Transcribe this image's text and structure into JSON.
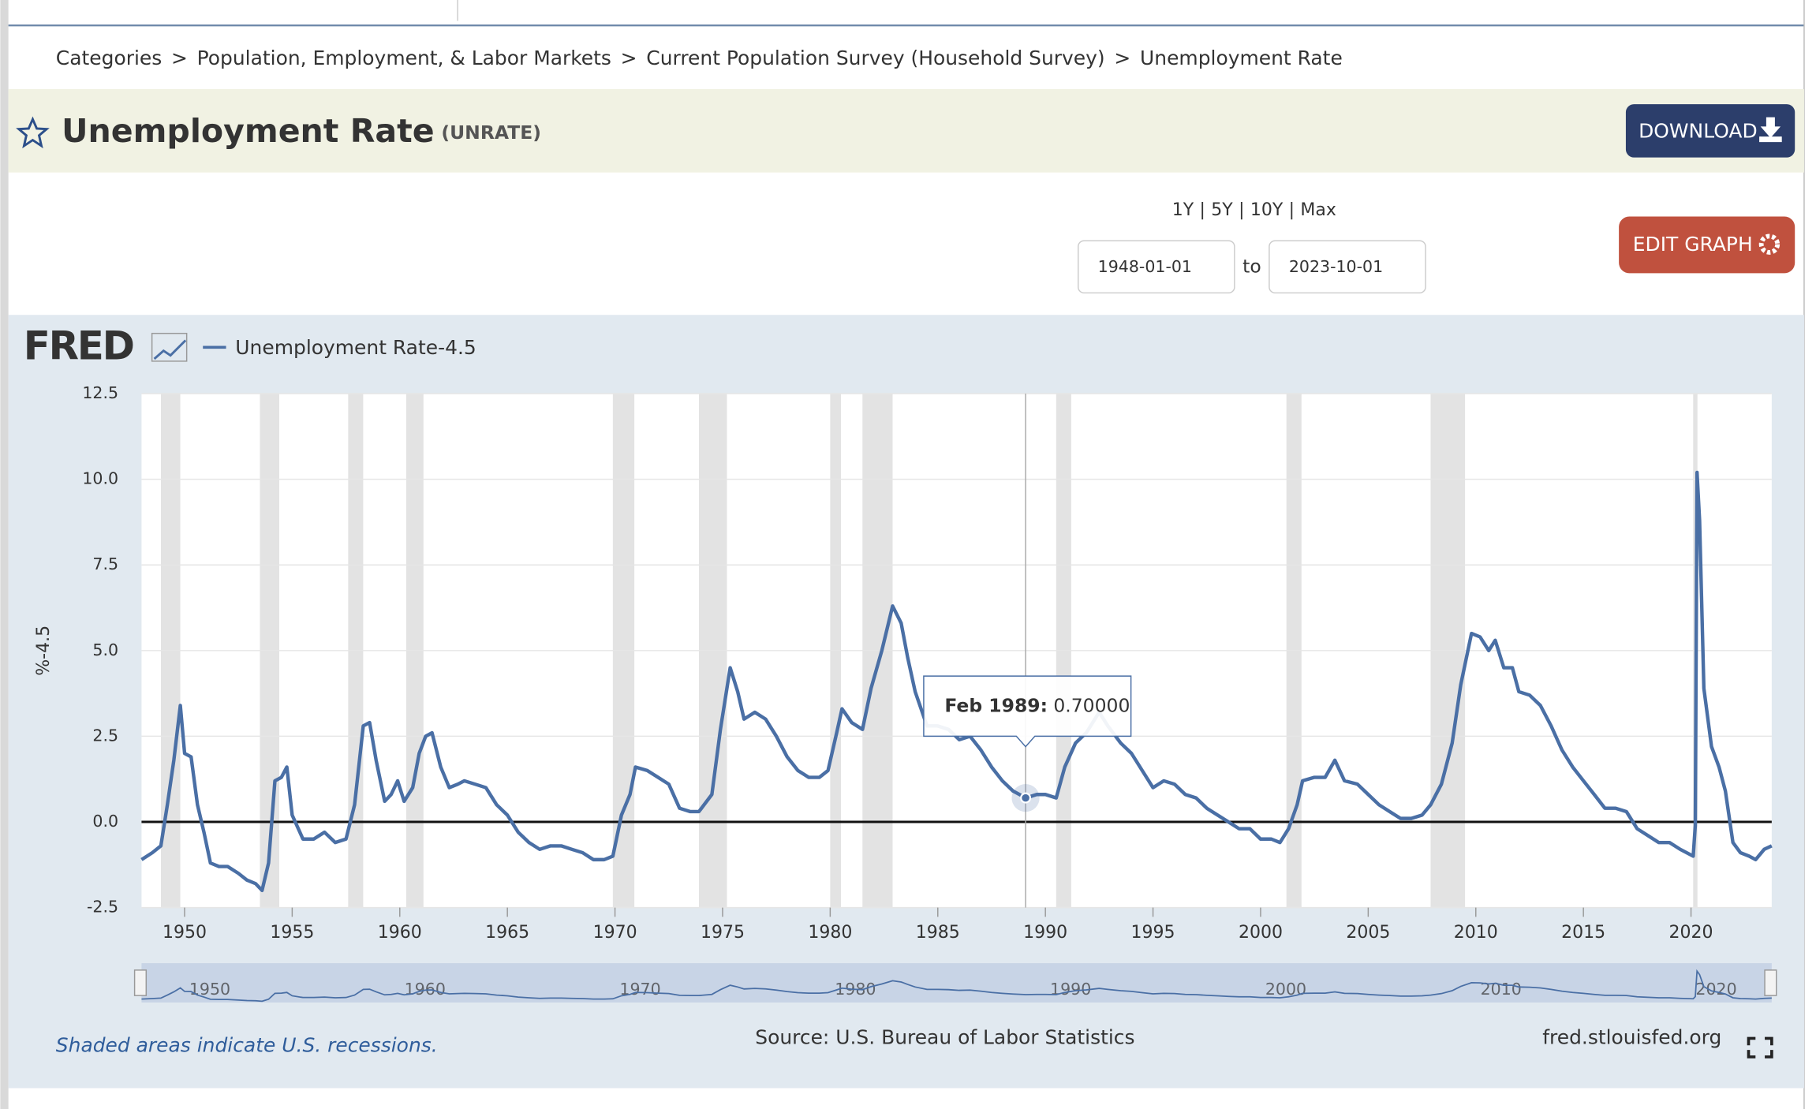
{
  "breadcrumb": {
    "separator": ">",
    "items": [
      "Categories",
      "Population, Employment, & Labor Markets",
      "Current Population Survey (Household Survey)",
      "Unemployment Rate"
    ]
  },
  "header": {
    "title": "Unemployment Rate",
    "series_id": "(UNRATE)",
    "download": "DOWNLOAD"
  },
  "controls": {
    "separator": "|",
    "ranges": [
      "1Y",
      "5Y",
      "10Y",
      "Max"
    ],
    "start": "1948-01-01",
    "to": "to",
    "end": "2023-10-01",
    "edit": "EDIT GRAPH"
  },
  "chart_data": {
    "type": "line",
    "brand": "FRED",
    "ylabel": "%-4.5",
    "x": [
      1948.0,
      1948.5,
      1948.9,
      1949.2,
      1949.5,
      1949.8,
      1950.0,
      1950.3,
      1950.6,
      1950.9,
      1951.2,
      1951.6,
      1952.0,
      1952.5,
      1952.9,
      1953.3,
      1953.6,
      1953.9,
      1954.2,
      1954.5,
      1954.75,
      1955.0,
      1955.5,
      1956.0,
      1956.5,
      1957.0,
      1957.5,
      1957.9,
      1958.3,
      1958.6,
      1958.9,
      1959.3,
      1959.6,
      1959.9,
      1960.2,
      1960.6,
      1960.9,
      1961.2,
      1961.5,
      1961.9,
      1962.3,
      1962.7,
      1963.0,
      1963.5,
      1964.0,
      1964.5,
      1965.0,
      1965.5,
      1966.0,
      1966.5,
      1967.0,
      1967.5,
      1968.0,
      1968.5,
      1969.0,
      1969.5,
      1969.9,
      1970.3,
      1970.7,
      1970.95,
      1971.5,
      1972.0,
      1972.5,
      1973.0,
      1973.5,
      1973.9,
      1974.5,
      1974.9,
      1975.35,
      1975.7,
      1976.0,
      1976.5,
      1977.0,
      1977.5,
      1978.0,
      1978.5,
      1979.0,
      1979.5,
      1979.9,
      1980.3,
      1980.55,
      1981.0,
      1981.5,
      1981.9,
      1982.4,
      1982.9,
      1983.3,
      1983.6,
      1983.95,
      1984.5,
      1985.0,
      1985.5,
      1986.0,
      1986.5,
      1987.0,
      1987.5,
      1988.0,
      1988.5,
      1989.1,
      1989.6,
      1990.0,
      1990.5,
      1990.9,
      1991.4,
      1991.9,
      1992.5,
      1992.9,
      1993.5,
      1994.0,
      1994.5,
      1995.0,
      1995.5,
      1996.0,
      1996.5,
      1997.0,
      1997.5,
      1998.0,
      1998.5,
      1999.0,
      1999.5,
      2000.0,
      2000.5,
      2000.9,
      2001.3,
      2001.7,
      2001.95,
      2002.5,
      2003.0,
      2003.45,
      2003.9,
      2004.5,
      2005.0,
      2005.5,
      2006.0,
      2006.5,
      2007.0,
      2007.5,
      2007.9,
      2008.4,
      2008.9,
      2009.3,
      2009.8,
      2010.2,
      2010.6,
      2010.9,
      2011.3,
      2011.7,
      2012.0,
      2012.5,
      2013.0,
      2013.5,
      2014.0,
      2014.5,
      2015.0,
      2015.5,
      2016.0,
      2016.5,
      2017.0,
      2017.5,
      2018.0,
      2018.5,
      2019.0,
      2019.5,
      2020.1,
      2020.2,
      2020.28,
      2020.4,
      2020.6,
      2020.95,
      2021.3,
      2021.6,
      2021.95,
      2022.3,
      2022.7,
      2023.0,
      2023.4,
      2023.75
    ],
    "series": [
      {
        "name": "Unemployment Rate-4.5",
        "color": "#4a6fa5",
        "values": [
          -1.1,
          -0.9,
          -0.7,
          0.5,
          1.8,
          3.4,
          2.0,
          1.9,
          0.5,
          -0.3,
          -1.2,
          -1.3,
          -1.3,
          -1.5,
          -1.7,
          -1.8,
          -2.0,
          -1.2,
          1.2,
          1.3,
          1.6,
          0.2,
          -0.5,
          -0.5,
          -0.3,
          -0.6,
          -0.5,
          0.5,
          2.8,
          2.9,
          1.8,
          0.6,
          0.8,
          1.2,
          0.6,
          1.0,
          2.0,
          2.5,
          2.6,
          1.6,
          1.0,
          1.1,
          1.2,
          1.1,
          1.0,
          0.5,
          0.2,
          -0.3,
          -0.6,
          -0.8,
          -0.7,
          -0.7,
          -0.8,
          -0.9,
          -1.1,
          -1.1,
          -1.0,
          0.2,
          0.8,
          1.6,
          1.5,
          1.3,
          1.1,
          0.4,
          0.3,
          0.3,
          0.8,
          2.7,
          4.5,
          3.8,
          3.0,
          3.2,
          3.0,
          2.5,
          1.9,
          1.5,
          1.3,
          1.3,
          1.5,
          2.6,
          3.3,
          2.9,
          2.7,
          3.9,
          5.0,
          6.3,
          5.8,
          4.8,
          3.8,
          2.8,
          2.8,
          2.7,
          2.4,
          2.5,
          2.1,
          1.6,
          1.2,
          0.9,
          0.7,
          0.8,
          0.8,
          0.7,
          1.6,
          2.3,
          2.6,
          3.2,
          2.8,
          2.3,
          2.0,
          1.5,
          1.0,
          1.2,
          1.1,
          0.8,
          0.7,
          0.4,
          0.2,
          0.0,
          -0.2,
          -0.2,
          -0.5,
          -0.5,
          -0.6,
          -0.2,
          0.5,
          1.2,
          1.3,
          1.3,
          1.8,
          1.2,
          1.1,
          0.8,
          0.5,
          0.3,
          0.1,
          0.1,
          0.2,
          0.5,
          1.1,
          2.3,
          4.0,
          5.5,
          5.4,
          5.0,
          5.3,
          4.5,
          4.5,
          3.8,
          3.7,
          3.4,
          2.8,
          2.1,
          1.6,
          1.2,
          0.8,
          0.4,
          0.4,
          0.3,
          -0.2,
          -0.4,
          -0.6,
          -0.6,
          -0.8,
          -1.0,
          -0.1,
          10.2,
          8.8,
          3.9,
          2.2,
          1.6,
          0.9,
          -0.6,
          -0.9,
          -1.0,
          -1.1,
          -0.8,
          -0.7
        ]
      }
    ],
    "xlim": [
      1948.0,
      2023.75
    ],
    "xticks": [
      1950,
      1955,
      1960,
      1965,
      1970,
      1975,
      1980,
      1985,
      1990,
      1995,
      2000,
      2005,
      2010,
      2015,
      2020
    ],
    "ylim": [
      -2.5,
      12.5
    ],
    "yticks": [
      -2.5,
      {
        "value": 0,
        "label": "0.0"
      },
      2.5,
      {
        "value": 5,
        "label": "5.0"
      },
      7.5,
      {
        "value": 10,
        "label": "10.0"
      },
      12.5
    ],
    "grid": true,
    "recessions": [
      [
        1948.9,
        1949.8
      ],
      [
        1953.5,
        1954.4
      ],
      [
        1957.6,
        1958.3
      ],
      [
        1960.3,
        1961.1
      ],
      [
        1969.9,
        1970.9
      ],
      [
        1973.9,
        1975.2
      ],
      [
        1980.0,
        1980.5
      ],
      [
        1981.5,
        1982.9
      ],
      [
        1990.5,
        1991.2
      ],
      [
        2001.2,
        2001.9
      ],
      [
        2007.9,
        2009.5
      ],
      [
        2020.1,
        2020.3
      ]
    ],
    "tooltip": {
      "x": 1989.08,
      "label": "Feb 1989:",
      "value": 0.7,
      "value_label": "0.70000"
    },
    "navigator_ticks": [
      1950,
      1960,
      1970,
      1980,
      1990,
      2000,
      2010,
      2020
    ]
  },
  "footer": {
    "note": "Shaded areas indicate U.S. recessions.",
    "source": "Source: U.S. Bureau of Labor Statistics",
    "site": "fred.stlouisfed.org"
  }
}
